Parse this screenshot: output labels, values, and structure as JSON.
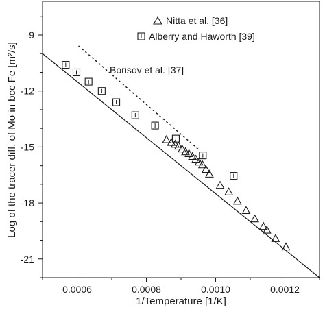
{
  "chart_data": {
    "type": "scatter",
    "xlabel": "1/Temperature [1/K]",
    "ylabel": "Log of the tracer diff. of Mo in bcc Fe [m²/s]",
    "xlim": [
      0.0005,
      0.0013
    ],
    "ylim": [
      -22.0,
      -7.2
    ],
    "x_ticks": [
      0.0006,
      0.0008,
      0.001,
      0.0012
    ],
    "x_tick_labels": [
      "0.0006",
      "0.0008",
      "0.0010",
      "0.0012"
    ],
    "y_ticks": [
      -9,
      -12,
      -15,
      -18,
      -21
    ],
    "y_tick_labels": [
      "-9",
      "-12",
      "-15",
      "-18",
      "-21"
    ],
    "grid": false,
    "legend_position": "top-right",
    "series": [
      {
        "name": "Nitta et al. [36]",
        "marker": "triangle",
        "points": [
          {
            "x": 0.000858,
            "y": -14.6
          },
          {
            "x": 0.000872,
            "y": -14.75
          },
          {
            "x": 0.000883,
            "y": -14.85
          },
          {
            "x": 0.000893,
            "y": -14.95
          },
          {
            "x": 0.000903,
            "y": -15.1
          },
          {
            "x": 0.000913,
            "y": -15.25
          },
          {
            "x": 0.000923,
            "y": -15.35
          },
          {
            "x": 0.000933,
            "y": -15.5
          },
          {
            "x": 0.000943,
            "y": -15.65
          },
          {
            "x": 0.000952,
            "y": -15.8
          },
          {
            "x": 0.000962,
            "y": -15.95
          },
          {
            "x": 0.000972,
            "y": -16.2
          },
          {
            "x": 0.000982,
            "y": -16.45
          },
          {
            "x": 0.001013,
            "y": -17.05
          },
          {
            "x": 0.001038,
            "y": -17.4
          },
          {
            "x": 0.001063,
            "y": -17.9
          },
          {
            "x": 0.001088,
            "y": -18.4
          },
          {
            "x": 0.001113,
            "y": -18.85
          },
          {
            "x": 0.001138,
            "y": -19.25
          },
          {
            "x": 0.001148,
            "y": -19.45
          },
          {
            "x": 0.001173,
            "y": -19.9
          },
          {
            "x": 0.001203,
            "y": -20.35
          }
        ]
      },
      {
        "name": "Alberry and Haworth [39]",
        "marker": "square",
        "points": [
          {
            "x": 0.000567,
            "y": -10.6
          },
          {
            "x": 0.000598,
            "y": -11.0
          },
          {
            "x": 0.000633,
            "y": -11.5
          },
          {
            "x": 0.000671,
            "y": -12.0
          },
          {
            "x": 0.000713,
            "y": -12.6
          },
          {
            "x": 0.000768,
            "y": -13.3
          },
          {
            "x": 0.000825,
            "y": -13.85
          },
          {
            "x": 0.000885,
            "y": -14.55
          },
          {
            "x": 0.000963,
            "y": -15.45
          },
          {
            "x": 0.001052,
            "y": -16.55
          }
        ]
      },
      {
        "name": "Borisov et al. [37]",
        "style": "dotted-line",
        "points": [
          {
            "x": 0.000605,
            "y": -9.6
          },
          {
            "x": 0.000955,
            "y": -15.2
          }
        ]
      }
    ],
    "fit_line": {
      "style": "solid",
      "points": [
        {
          "x": 0.0005,
          "y": -10.0
        },
        {
          "x": 0.0013,
          "y": -22.0
        }
      ]
    },
    "annotations": [
      {
        "text": "Borisov et al. [37]"
      }
    ]
  },
  "legend": {
    "items": [
      {
        "label": "Nitta et al. [36]",
        "marker": "triangle"
      },
      {
        "label": "Alberry and Haworth [39]",
        "marker": "square"
      }
    ]
  },
  "colors": {
    "ink": "#1a1a1a",
    "background": "#ffffff"
  }
}
